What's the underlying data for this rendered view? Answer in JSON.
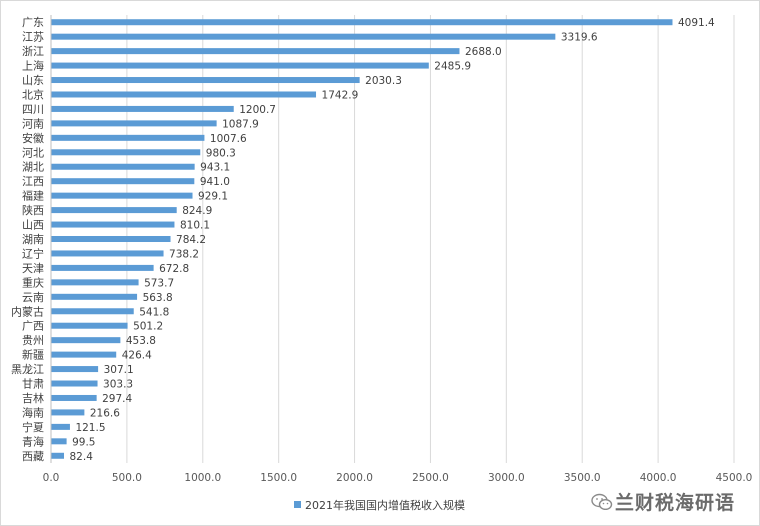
{
  "chart_data": {
    "type": "bar",
    "orientation": "horizontal",
    "categories": [
      "广东",
      "江苏",
      "浙江",
      "上海",
      "山东",
      "北京",
      "四川",
      "河南",
      "安徽",
      "河北",
      "湖北",
      "江西",
      "福建",
      "陕西",
      "山西",
      "湖南",
      "辽宁",
      "天津",
      "重庆",
      "云南",
      "内蒙古",
      "广西",
      "贵州",
      "新疆",
      "黑龙江",
      "甘肃",
      "吉林",
      "海南",
      "宁夏",
      "青海",
      "西藏"
    ],
    "series": [
      {
        "name": "2021年我国国内增值税收入规模",
        "color": "#5b9bd5",
        "values": [
          4091.4,
          3319.6,
          2688.0,
          2485.9,
          2030.3,
          1742.9,
          1200.7,
          1087.9,
          1007.6,
          980.3,
          943.1,
          941.0,
          929.1,
          824.9,
          810.1,
          784.2,
          738.2,
          672.8,
          573.7,
          563.8,
          541.8,
          501.2,
          453.8,
          426.4,
          307.1,
          303.3,
          297.4,
          216.6,
          121.5,
          99.5,
          82.4
        ],
        "value_labels": [
          "4091.4",
          "3319.6",
          "2688.0",
          "2485.9",
          "2030.3",
          "1742.9",
          "1200.7",
          "1087.9",
          "1007.6",
          "980.3",
          "943.1",
          "941.0",
          "929.1",
          "824.9",
          "810.1",
          "784.2",
          "738.2",
          "672.8",
          "573.7",
          "563.8",
          "541.8",
          "501.2",
          "453.8",
          "426.4",
          "307.1",
          "303.3",
          "297.4",
          "216.6",
          "121.5",
          "99.5",
          "82.4"
        ]
      }
    ],
    "xlim": [
      0,
      4500
    ],
    "xticks": [
      0,
      500,
      1000,
      1500,
      2000,
      2500,
      3000,
      3500,
      4000,
      4500
    ],
    "xtick_labels": [
      "0.0",
      "500.0",
      "1000.0",
      "1500.0",
      "2000.0",
      "2500.0",
      "3000.0",
      "3500.0",
      "4000.0",
      "4500.0"
    ],
    "grid": "vertical",
    "legend": "bottom",
    "legend_label": "2021年我国国内增值税收入规模"
  },
  "watermark": {
    "text": "兰财税海研语",
    "icon": "wechat-icon"
  },
  "colors": {
    "bar": "#5b9bd5",
    "grid": "#d9d9d9",
    "axis": "#bfbfbf"
  }
}
